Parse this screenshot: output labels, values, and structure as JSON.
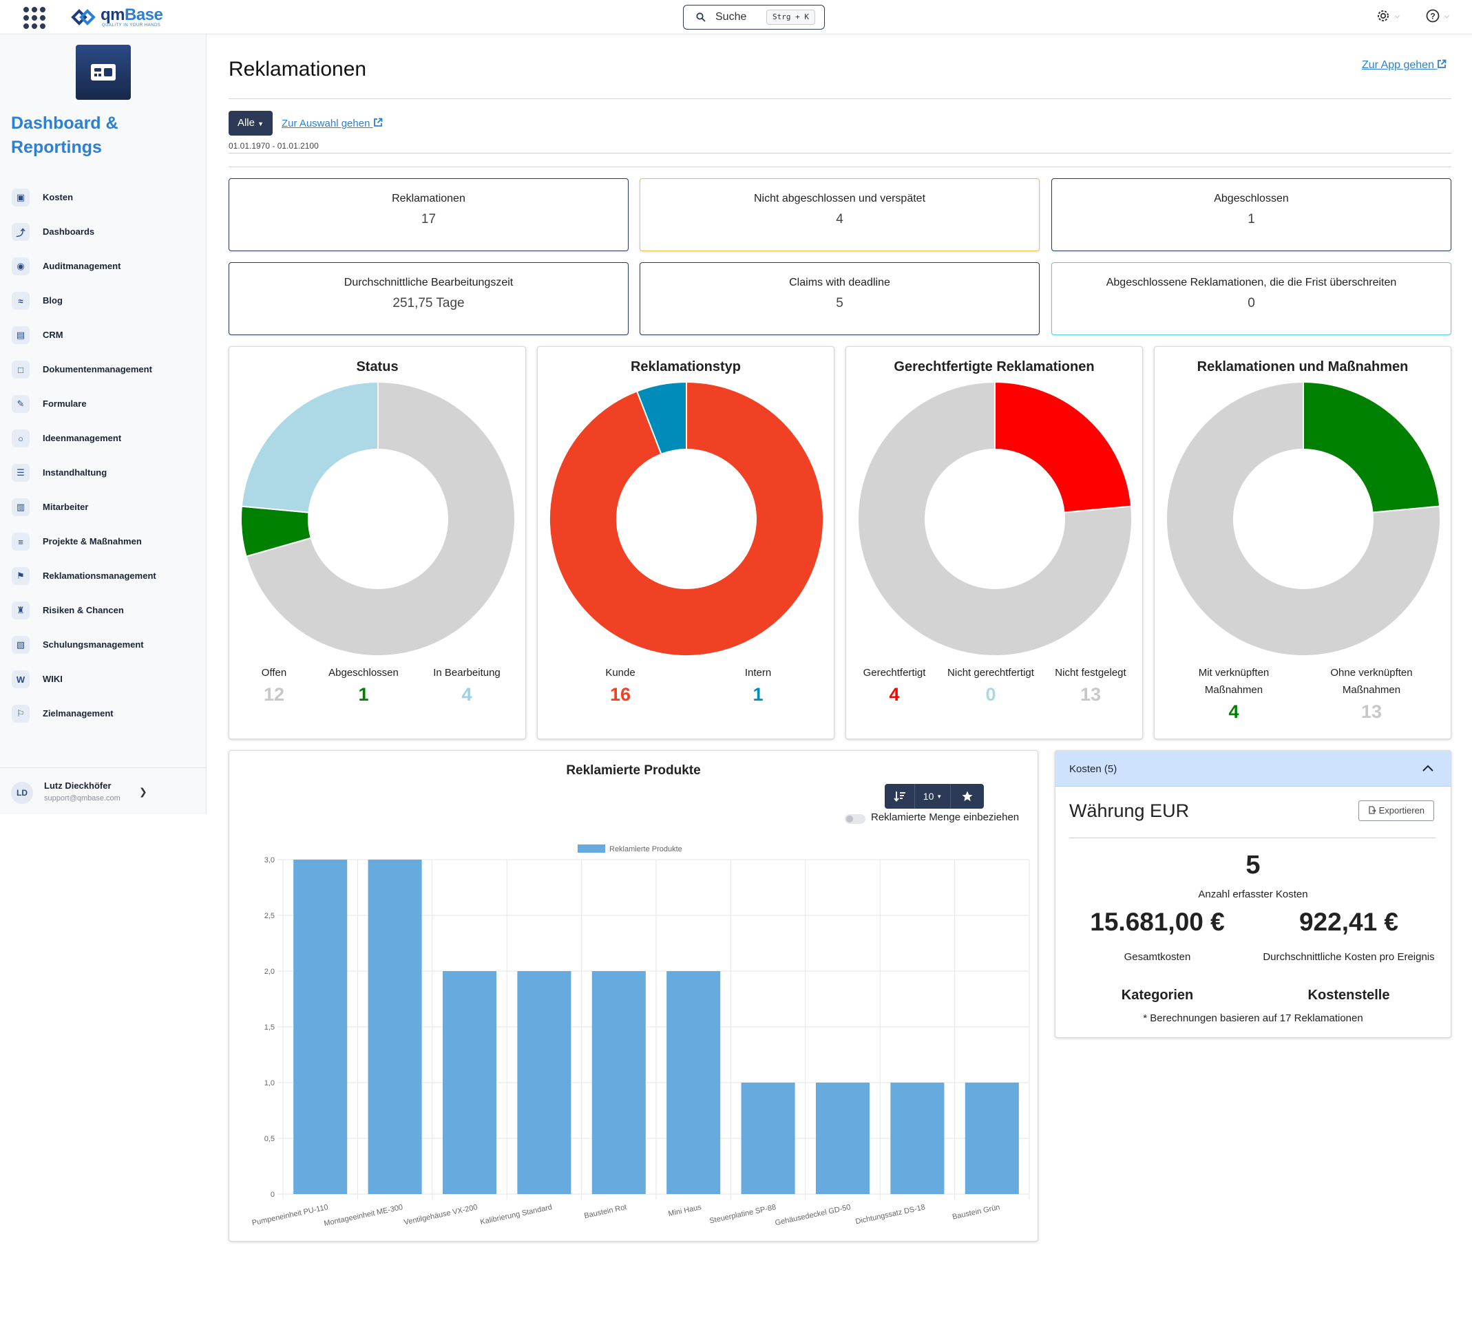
{
  "topbar": {
    "logo_prefix": "qm",
    "logo_suffix": "Base",
    "logo_tagline": "QUALITY IN YOUR HANDS",
    "search_label": "Suche",
    "search_shortcut": "Strg + K"
  },
  "sidebar": {
    "module_title": "Dashboard & Reportings",
    "items": [
      {
        "label": "Kosten",
        "icon": "money-icon"
      },
      {
        "label": "Dashboards",
        "icon": "chart-line-icon"
      },
      {
        "label": "Auditmanagement",
        "icon": "audit-icon"
      },
      {
        "label": "Blog",
        "icon": "rss-icon"
      },
      {
        "label": "CRM",
        "icon": "address-book-icon"
      },
      {
        "label": "Dokumentenmanagement",
        "icon": "folder-icon"
      },
      {
        "label": "Formulare",
        "icon": "edit-icon"
      },
      {
        "label": "Ideenmanagement",
        "icon": "lightbulb-icon"
      },
      {
        "label": "Instandhaltung",
        "icon": "database-icon"
      },
      {
        "label": "Mitarbeiter",
        "icon": "id-card-icon"
      },
      {
        "label": "Projekte & Maßnahmen",
        "icon": "list-icon"
      },
      {
        "label": "Reklamationsmanagement",
        "icon": "complaint-icon"
      },
      {
        "label": "Risiken & Chancen",
        "icon": "chess-rook-icon"
      },
      {
        "label": "Schulungsmanagement",
        "icon": "training-icon"
      },
      {
        "label": "WIKI",
        "icon": "wikipedia-icon"
      },
      {
        "label": "Zielmanagement",
        "icon": "flag-icon"
      }
    ],
    "user": {
      "initials": "LD",
      "name": "Lutz Dieckhöfer",
      "email": "support@qmbase.com"
    }
  },
  "page": {
    "title": "Reklamationen",
    "app_link": "Zur App gehen",
    "filter_label": "Alle",
    "selection_link": "Zur Auswahl gehen",
    "date_range": "01.01.1970 - 01.01.2100"
  },
  "kpis": [
    {
      "label": "Reklamationen",
      "value": "17",
      "accent": "#2c3a57"
    },
    {
      "label": "Nicht abgeschlossen und verspätet",
      "value": "4",
      "accent": "#f0c040"
    },
    {
      "label": "Abgeschlossen",
      "value": "1",
      "accent": "#2c3a57"
    },
    {
      "label": "Durchschnittliche Bearbeitungszeit",
      "value": "251,75 Tage",
      "accent": "#2c3a57"
    },
    {
      "label": "Claims with deadline",
      "value": "5",
      "accent": "#2c3a57"
    },
    {
      "label": "Abgeschlossene Reklamationen, die die Frist überschreiten",
      "value": "0",
      "accent": "#5dc8e4"
    }
  ],
  "donuts": [
    {
      "title": "Status",
      "segments": [
        {
          "label": "Offen",
          "value": 12,
          "color": "#d3d3d3",
          "value_color": "#c8c8c8"
        },
        {
          "label": "Abgeschlossen",
          "value": 1,
          "color": "#008000",
          "value_color": "#008000"
        },
        {
          "label": "In Bearbeitung",
          "value": 4,
          "color": "#add8e6",
          "value_color": "#9cd0e3"
        }
      ]
    },
    {
      "title": "Reklamationstyp",
      "segments": [
        {
          "label": "Kunde",
          "value": 16,
          "color": "#f04124",
          "value_color": "#f04124"
        },
        {
          "label": "Intern",
          "value": 1,
          "color": "#008cba",
          "value_color": "#008cba"
        }
      ]
    },
    {
      "title": "Gerechtfertigte Reklamationen",
      "segments": [
        {
          "label": "Gerechtfertigt",
          "value": 4,
          "color": "#ff0000",
          "value_color": "#ff0000"
        },
        {
          "label": "Nicht gerechtfertigt",
          "value": 0,
          "color": "#add8e6",
          "value_color": "#add8e6"
        },
        {
          "label": "Nicht festgelegt",
          "value": 13,
          "color": "#d3d3d3",
          "value_color": "#c8c8c8"
        }
      ]
    },
    {
      "title": "Reklamationen und Maßnahmen",
      "segments": [
        {
          "label": "Mit verknüpften Maßnahmen",
          "value": 4,
          "color": "#008000",
          "value_color": "#008000"
        },
        {
          "label": "Ohne verknüpften Maßnahmen",
          "value": 13,
          "color": "#d3d3d3",
          "value_color": "#c8c8c8"
        }
      ]
    }
  ],
  "products": {
    "title": "Reklamierte Produkte",
    "page_size": "10",
    "toggle_label": "Reklamierte Menge einbeziehen",
    "chart_data": {
      "type": "bar",
      "categories": [
        "Pumpeneinheit PU-110",
        "Montageeinheit ME-300",
        "Ventilgehäuse VX-200",
        "Kalibrierung Standard",
        "Baustein Rot",
        "Mini Haus",
        "Steuerplatine SP-88",
        "Gehäusedeckel GD-50",
        "Dichtungssatz DS-18",
        "Baustein Grün"
      ],
      "series": [
        {
          "name": "Reklamierte Produkte",
          "values": [
            3,
            3,
            2,
            2,
            2,
            2,
            1,
            1,
            1,
            1
          ],
          "color": "#66aade"
        }
      ],
      "ylim": [
        0,
        3
      ],
      "yticks": [
        "0",
        "0,5",
        "1,0",
        "1,5",
        "2,0",
        "2,5",
        "3,0"
      ],
      "grid": true,
      "legend": "top-center"
    }
  },
  "costs": {
    "header": "Kosten (5)",
    "currency": "Währung EUR",
    "export_label": "Exportieren",
    "count": "5",
    "count_label": "Anzahl erfasster Kosten",
    "total": "15.681,00 €",
    "total_label": "Gesamtkosten",
    "average": "922,41 €",
    "average_label": "Durchschnittliche Kosten pro Ereignis",
    "categories_label": "Kategorien",
    "cost_center_label": "Kostenstelle",
    "note": "* Berechnungen basieren auf 17 Reklamationen"
  }
}
